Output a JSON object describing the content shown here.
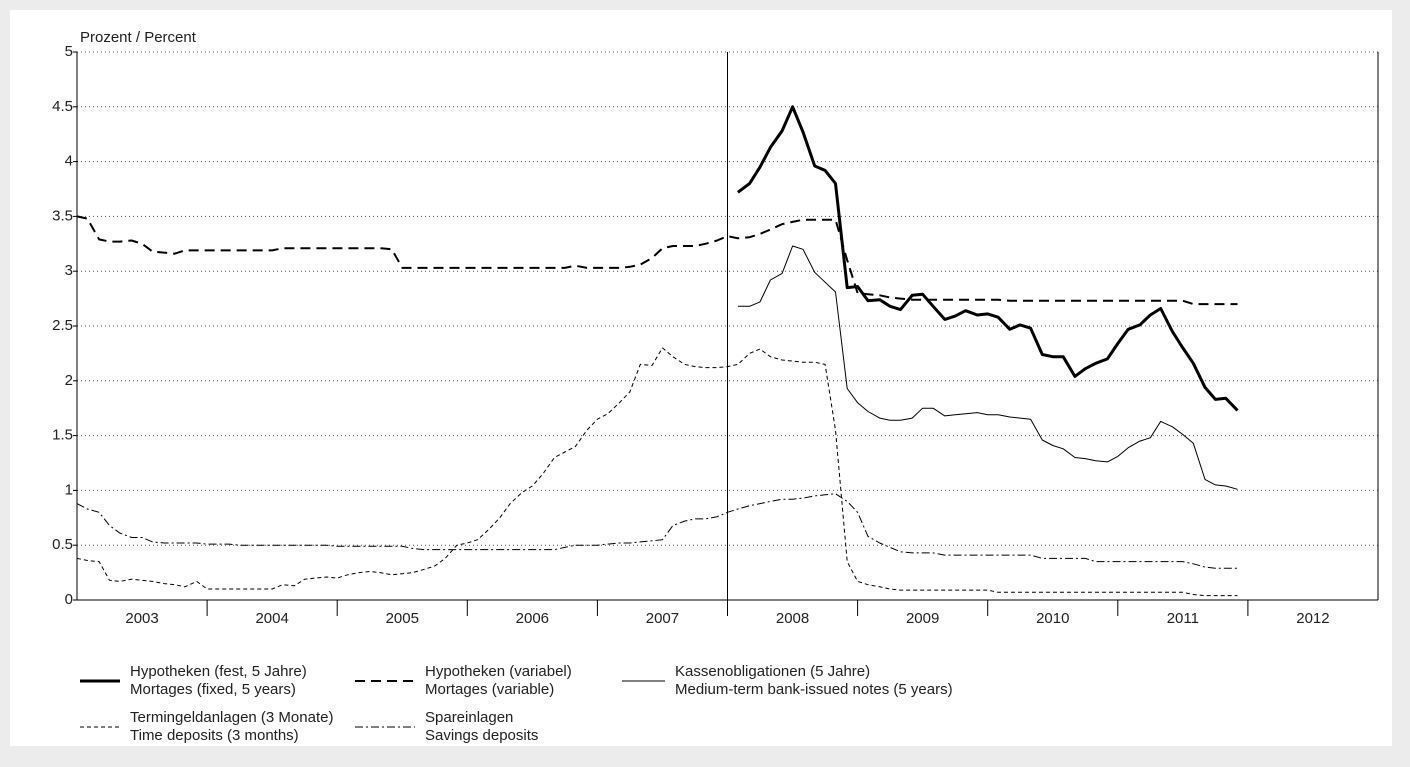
{
  "chart_data": {
    "type": "line",
    "y_label": "Prozent / Percent",
    "categories": [
      "2003",
      "2004",
      "2005",
      "2006",
      "2007",
      "2008",
      "2009",
      "2010",
      "2011",
      "2012"
    ],
    "xlim": [
      2003,
      2013
    ],
    "ylim": [
      0,
      5
    ],
    "yticks": [
      0,
      0.5,
      1,
      1.5,
      2,
      2.5,
      3,
      3.5,
      4,
      4.5,
      5
    ],
    "grid": true,
    "vline": 2008,
    "x": [
      2003,
      2003.08,
      2003.17,
      2003.25,
      2003.33,
      2003.42,
      2003.5,
      2003.58,
      2003.67,
      2003.75,
      2003.83,
      2003.92,
      2004,
      2004.08,
      2004.17,
      2004.25,
      2004.33,
      2004.42,
      2004.5,
      2004.58,
      2004.67,
      2004.75,
      2004.83,
      2004.92,
      2005,
      2005.08,
      2005.17,
      2005.25,
      2005.33,
      2005.42,
      2005.5,
      2005.58,
      2005.67,
      2005.75,
      2005.83,
      2005.92,
      2006,
      2006.08,
      2006.17,
      2006.25,
      2006.33,
      2006.42,
      2006.5,
      2006.58,
      2006.67,
      2006.75,
      2006.83,
      2006.92,
      2007,
      2007.08,
      2007.17,
      2007.25,
      2007.33,
      2007.42,
      2007.5,
      2007.58,
      2007.67,
      2007.75,
      2007.83,
      2007.92,
      2008,
      2008.08,
      2008.17,
      2008.25,
      2008.33,
      2008.42,
      2008.5,
      2008.58,
      2008.67,
      2008.75,
      2008.83,
      2008.92,
      2009,
      2009.08,
      2009.17,
      2009.25,
      2009.33,
      2009.42,
      2009.5,
      2009.58,
      2009.67,
      2009.75,
      2009.83,
      2009.92,
      2010,
      2010.08,
      2010.17,
      2010.25,
      2010.33,
      2010.42,
      2010.5,
      2010.58,
      2010.67,
      2010.75,
      2010.83,
      2010.92,
      2011,
      2011.08,
      2011.17,
      2011.25,
      2011.33,
      2011.42,
      2011.5,
      2011.58,
      2011.67,
      2011.75,
      2011.83,
      2011.92
    ],
    "series": [
      {
        "name": "Hypotheken (fest, 5 Jahre)",
        "name_en": "Mortages (fixed, 5 years)",
        "color": "#000000",
        "width": 3,
        "dash": "none",
        "values": [
          null,
          null,
          null,
          null,
          null,
          null,
          null,
          null,
          null,
          null,
          null,
          null,
          null,
          null,
          null,
          null,
          null,
          null,
          null,
          null,
          null,
          null,
          null,
          null,
          null,
          null,
          null,
          null,
          null,
          null,
          null,
          null,
          null,
          null,
          null,
          null,
          null,
          null,
          null,
          null,
          null,
          null,
          null,
          null,
          null,
          null,
          null,
          null,
          null,
          null,
          null,
          null,
          null,
          null,
          null,
          null,
          null,
          null,
          null,
          null,
          null,
          3.72,
          3.8,
          3.95,
          4.13,
          4.28,
          4.5,
          4.27,
          3.96,
          3.92,
          3.8,
          2.85,
          2.86,
          2.73,
          2.74,
          2.68,
          2.65,
          2.78,
          2.79,
          2.68,
          2.56,
          2.59,
          2.64,
          2.6,
          2.61,
          2.58,
          2.47,
          2.51,
          2.48,
          2.24,
          2.22,
          2.22,
          2.04,
          2.11,
          2.16,
          2.2,
          2.34,
          2.47,
          2.51,
          2.6,
          2.66,
          2.45,
          2.3,
          2.16,
          1.94,
          1.83,
          1.84,
          1.73
        ]
      },
      {
        "name": "Hypotheken (variabel)",
        "name_en": "Mortages (variable)",
        "color": "#000000",
        "width": 2,
        "dash": "10 6",
        "values": [
          3.5,
          3.48,
          3.29,
          3.27,
          3.27,
          3.28,
          3.25,
          3.18,
          3.17,
          3.16,
          3.19,
          3.19,
          3.19,
          3.19,
          3.19,
          3.19,
          3.19,
          3.19,
          3.19,
          3.21,
          3.21,
          3.21,
          3.21,
          3.21,
          3.21,
          3.21,
          3.21,
          3.21,
          3.21,
          3.2,
          3.03,
          3.03,
          3.03,
          3.03,
          3.03,
          3.03,
          3.03,
          3.03,
          3.03,
          3.03,
          3.03,
          3.03,
          3.03,
          3.03,
          3.03,
          3.03,
          3.05,
          3.03,
          3.03,
          3.03,
          3.03,
          3.04,
          3.06,
          3.12,
          3.21,
          3.23,
          3.23,
          3.23,
          3.25,
          3.28,
          3.32,
          3.3,
          3.31,
          3.34,
          3.38,
          3.43,
          3.45,
          3.47,
          3.47,
          3.47,
          3.47,
          3.1,
          2.8,
          2.79,
          2.78,
          2.76,
          2.75,
          2.74,
          2.74,
          2.74,
          2.74,
          2.74,
          2.74,
          2.74,
          2.74,
          2.74,
          2.73,
          2.73,
          2.73,
          2.73,
          2.73,
          2.73,
          2.73,
          2.73,
          2.73,
          2.73,
          2.73,
          2.73,
          2.73,
          2.73,
          2.73,
          2.73,
          2.73,
          2.7,
          2.7,
          2.7,
          2.7,
          2.7
        ]
      },
      {
        "name": "Kassenobligationen (5 Jahre)",
        "name_en": "Medium-term bank-issued notes (5 years)",
        "color": "#000000",
        "width": 1,
        "dash": "none",
        "values": [
          null,
          null,
          null,
          null,
          null,
          null,
          null,
          null,
          null,
          null,
          null,
          null,
          null,
          null,
          null,
          null,
          null,
          null,
          null,
          null,
          null,
          null,
          null,
          null,
          null,
          null,
          null,
          null,
          null,
          null,
          null,
          null,
          null,
          null,
          null,
          null,
          null,
          null,
          null,
          null,
          null,
          null,
          null,
          null,
          null,
          null,
          null,
          null,
          null,
          null,
          null,
          null,
          null,
          null,
          null,
          null,
          null,
          null,
          null,
          null,
          null,
          2.68,
          2.68,
          2.72,
          2.92,
          2.98,
          3.23,
          3.2,
          2.99,
          2.9,
          2.81,
          1.93,
          1.8,
          1.72,
          1.66,
          1.64,
          1.64,
          1.66,
          1.75,
          1.75,
          1.68,
          1.69,
          1.7,
          1.71,
          1.69,
          1.69,
          1.67,
          1.66,
          1.65,
          1.46,
          1.41,
          1.38,
          1.3,
          1.29,
          1.27,
          1.26,
          1.31,
          1.39,
          1.45,
          1.48,
          1.63,
          1.58,
          1.51,
          1.43,
          1.1,
          1.05,
          1.04,
          1.01
        ]
      },
      {
        "name": "Termingeldanlagen (3 Monate)",
        "name_en": "Time deposits (3 months)",
        "color": "#000000",
        "width": 1,
        "dash": "4 3",
        "values": [
          0.38,
          0.36,
          0.35,
          0.18,
          0.17,
          0.19,
          0.18,
          0.17,
          0.15,
          0.14,
          0.12,
          0.17,
          0.1,
          0.1,
          0.1,
          0.1,
          0.1,
          0.1,
          0.1,
          0.14,
          0.13,
          0.19,
          0.2,
          0.21,
          0.2,
          0.23,
          0.25,
          0.26,
          0.25,
          0.23,
          0.24,
          0.25,
          0.28,
          0.31,
          0.38,
          0.5,
          0.52,
          0.55,
          0.65,
          0.75,
          0.88,
          0.98,
          1.04,
          1.15,
          1.3,
          1.35,
          1.4,
          1.55,
          1.65,
          1.7,
          1.8,
          1.9,
          2.15,
          2.14,
          2.3,
          2.22,
          2.15,
          2.13,
          2.12,
          2.12,
          2.13,
          2.15,
          2.25,
          2.29,
          2.22,
          2.19,
          2.18,
          2.17,
          2.17,
          2.15,
          1.55,
          0.35,
          0.17,
          0.14,
          0.12,
          0.1,
          0.09,
          0.09,
          0.09,
          0.09,
          0.09,
          0.09,
          0.09,
          0.09,
          0.09,
          0.07,
          0.07,
          0.07,
          0.07,
          0.07,
          0.07,
          0.07,
          0.07,
          0.07,
          0.07,
          0.07,
          0.07,
          0.07,
          0.07,
          0.07,
          0.07,
          0.07,
          0.07,
          0.05,
          0.04,
          0.04,
          0.04,
          0.04
        ]
      },
      {
        "name": "Spareinlagen",
        "name_en": "Savings deposits",
        "color": "#000000",
        "width": 1,
        "dash": "8 3 2 3",
        "values": [
          0.88,
          0.83,
          0.8,
          0.68,
          0.61,
          0.57,
          0.57,
          0.53,
          0.52,
          0.52,
          0.52,
          0.52,
          0.51,
          0.51,
          0.51,
          0.5,
          0.5,
          0.5,
          0.5,
          0.5,
          0.5,
          0.5,
          0.5,
          0.5,
          0.49,
          0.49,
          0.49,
          0.49,
          0.49,
          0.49,
          0.49,
          0.47,
          0.46,
          0.46,
          0.46,
          0.46,
          0.46,
          0.46,
          0.46,
          0.46,
          0.46,
          0.46,
          0.46,
          0.46,
          0.46,
          0.48,
          0.5,
          0.5,
          0.5,
          0.51,
          0.52,
          0.52,
          0.53,
          0.54,
          0.55,
          0.68,
          0.72,
          0.74,
          0.74,
          0.76,
          0.8,
          0.83,
          0.86,
          0.88,
          0.9,
          0.92,
          0.92,
          0.93,
          0.95,
          0.96,
          0.97,
          0.9,
          0.8,
          0.58,
          0.52,
          0.48,
          0.44,
          0.43,
          0.43,
          0.43,
          0.41,
          0.41,
          0.41,
          0.41,
          0.41,
          0.41,
          0.41,
          0.41,
          0.41,
          0.38,
          0.38,
          0.38,
          0.38,
          0.38,
          0.35,
          0.35,
          0.35,
          0.35,
          0.35,
          0.35,
          0.35,
          0.35,
          0.35,
          0.33,
          0.3,
          0.29,
          0.29,
          0.29
        ]
      }
    ]
  }
}
